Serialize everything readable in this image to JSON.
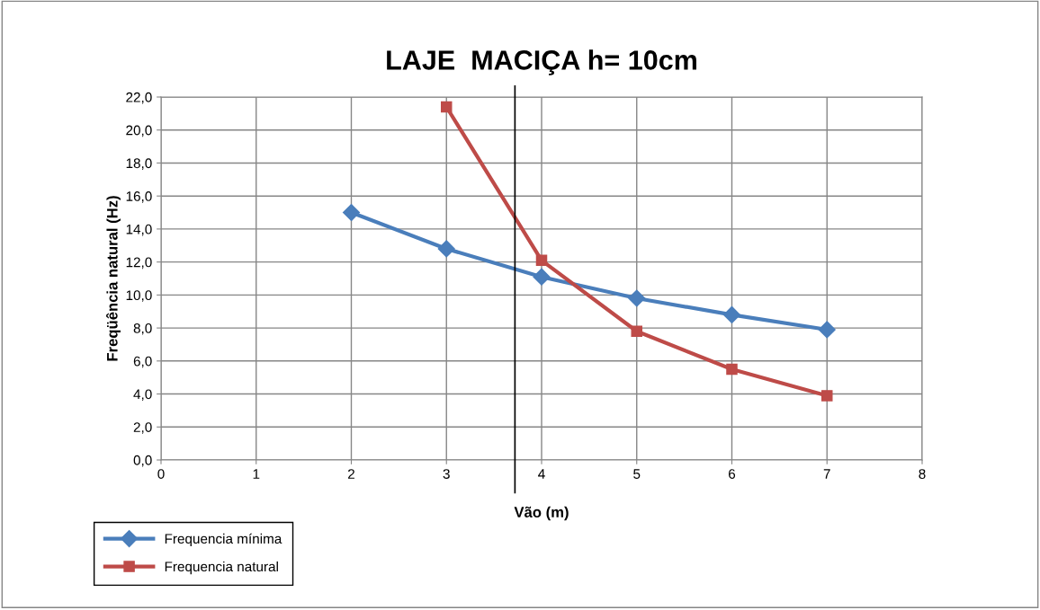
{
  "chart_data": {
    "type": "line",
    "title": "LAJE  MACIÇA h= 10cm",
    "xlabel": "Vão (m)",
    "ylabel": "Freqüência natural (Hz)",
    "series": [
      {
        "name": "Frequencia mínima",
        "color": "#4a7ebb",
        "marker": "diamond",
        "x": [
          2,
          3,
          4,
          5,
          6,
          7
        ],
        "values": [
          15.0,
          12.8,
          11.1,
          9.8,
          8.8,
          7.9
        ]
      },
      {
        "name": "Frequencia natural",
        "color": "#be4b48",
        "marker": "square",
        "x": [
          3,
          4,
          5,
          6,
          7
        ],
        "values": [
          21.4,
          12.1,
          7.8,
          5.5,
          3.9
        ]
      }
    ],
    "xlim": [
      0,
      8
    ],
    "xticks": [
      0,
      1,
      2,
      3,
      4,
      5,
      6,
      7,
      8
    ],
    "ylim": [
      0,
      22
    ],
    "yticks": [
      {
        "value": 0,
        "label": "0,0"
      },
      {
        "value": 2,
        "label": "2,0"
      },
      {
        "value": 4,
        "label": "4,0"
      },
      {
        "value": 6,
        "label": "6,0"
      },
      {
        "value": 8,
        "label": "8,0"
      },
      {
        "value": 10,
        "label": "10,0"
      },
      {
        "value": 12,
        "label": "12,0"
      },
      {
        "value": 14,
        "label": "14,0"
      },
      {
        "value": 16,
        "label": "16,0"
      },
      {
        "value": 18,
        "label": "18,0"
      },
      {
        "value": 20,
        "label": "20,0"
      },
      {
        "value": 22,
        "label": "22,0"
      }
    ],
    "ref_lines": [
      {
        "axis": "x",
        "value": 3.72,
        "color": "#000000"
      }
    ],
    "grid": true,
    "legend": "bottom left",
    "line_style": "solid"
  }
}
